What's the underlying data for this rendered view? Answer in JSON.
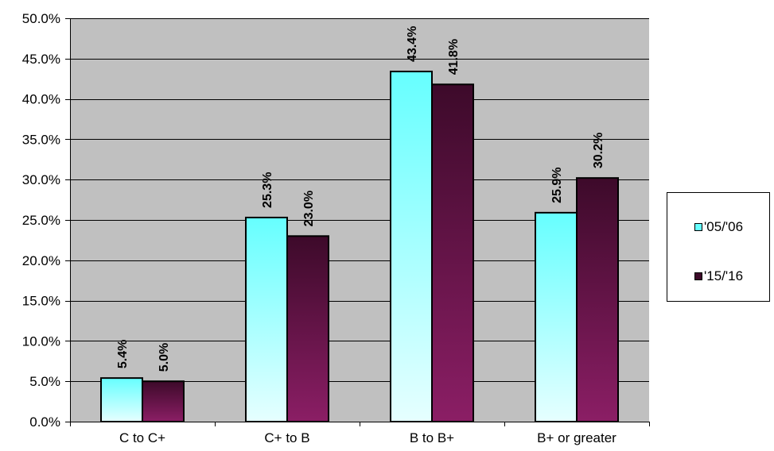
{
  "chart_data": {
    "type": "bar",
    "categories": [
      "C to C+",
      "C+ to B",
      "B to B+",
      "B+ or greater"
    ],
    "series": [
      {
        "name": "'05/'06",
        "values": [
          5.4,
          25.3,
          43.4,
          25.9
        ],
        "labels": [
          "5.4%",
          "25.3%",
          "43.4%",
          "25.9%"
        ]
      },
      {
        "name": "'15/'16",
        "values": [
          5.0,
          23.0,
          41.8,
          30.2
        ],
        "labels": [
          "5.0%",
          "23.0%",
          "41.8%",
          "30.2%"
        ]
      }
    ],
    "ylim": [
      0,
      50
    ],
    "yticks": [
      0,
      5,
      10,
      15,
      20,
      25,
      30,
      35,
      40,
      45,
      50
    ],
    "ytick_labels": [
      "0.0%",
      "5.0%",
      "10.0%",
      "15.0%",
      "20.0%",
      "25.0%",
      "30.0%",
      "35.0%",
      "40.0%",
      "45.0%",
      "50.0%"
    ],
    "title": "",
    "xlabel": "",
    "ylabel": "",
    "grid": true,
    "legend_position": "right",
    "colors": {
      "plot_background": "#c0c0c0",
      "series1_top": "#66ffff",
      "series1_bottom": "#e6ffff",
      "series2_top": "#3d0a2a",
      "series2_bottom": "#8b1e65",
      "gridline": "#000000"
    }
  },
  "legend": {
    "items": [
      "'05/'06",
      "'15/'16"
    ]
  }
}
